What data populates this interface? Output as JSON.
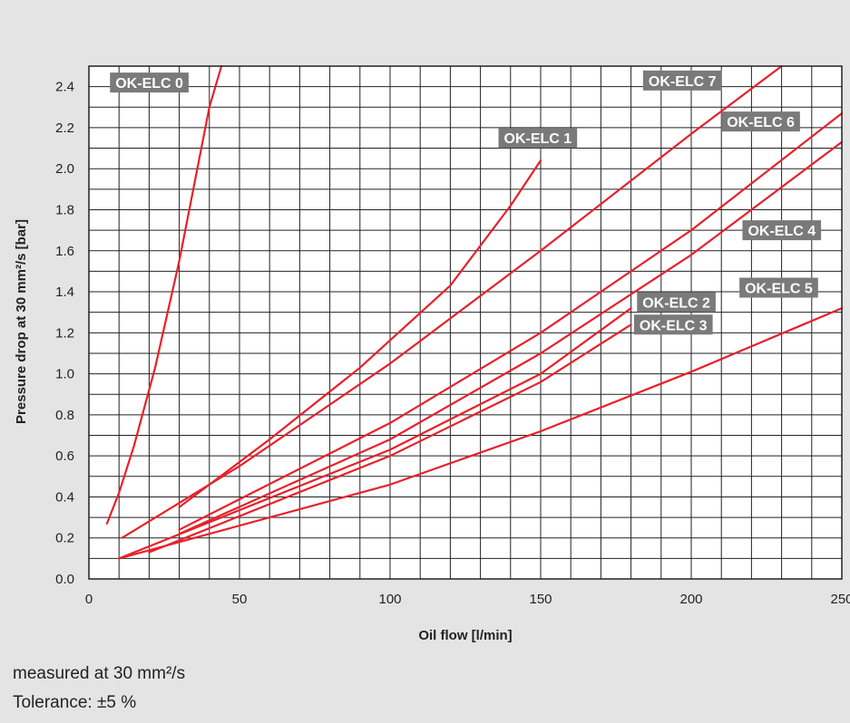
{
  "chart_data": {
    "type": "line",
    "xlabel": "Oil flow [l/min]",
    "ylabel": "Pressure drop at 30 mm²/s [bar]",
    "xlim": [
      0,
      250
    ],
    "ylim": [
      0,
      2.5
    ],
    "x_ticks": [
      "0",
      "50",
      "100",
      "150",
      "200",
      "250"
    ],
    "y_ticks": [
      "0.0",
      "0.2",
      "0.4",
      "0.6",
      "0.8",
      "1.0",
      "1.2",
      "1.4",
      "1.6",
      "1.8",
      "2.0",
      "2.2",
      "2.4"
    ],
    "grid": true,
    "series": [
      {
        "name": "OK-ELC 0",
        "x": [
          6,
          10,
          15,
          22,
          30,
          40,
          44
        ],
        "y": [
          0.27,
          0.42,
          0.65,
          1.03,
          1.55,
          2.3,
          2.5
        ]
      },
      {
        "name": "OK-ELC 1",
        "x": [
          30,
          60,
          90,
          120,
          140,
          150
        ],
        "y": [
          0.35,
          0.68,
          1.03,
          1.43,
          1.82,
          2.04
        ]
      },
      {
        "name": "OK-ELC 7",
        "x": [
          11,
          50,
          100,
          150,
          200,
          230
        ],
        "y": [
          0.2,
          0.55,
          1.05,
          1.6,
          2.17,
          2.5
        ]
      },
      {
        "name": "OK-ELC 6",
        "x": [
          30,
          100,
          150,
          200,
          250
        ],
        "y": [
          0.24,
          0.76,
          1.2,
          1.7,
          2.27
        ]
      },
      {
        "name": "OK-ELC 4",
        "x": [
          30,
          100,
          150,
          200,
          250
        ],
        "y": [
          0.22,
          0.68,
          1.1,
          1.58,
          2.13
        ]
      },
      {
        "name": "OK-ELC 2",
        "x": [
          10,
          100,
          150,
          180
        ],
        "y": [
          0.1,
          0.63,
          1.0,
          1.32
        ]
      },
      {
        "name": "OK-ELC 3",
        "x": [
          20,
          100,
          150,
          180
        ],
        "y": [
          0.13,
          0.6,
          0.96,
          1.24
        ]
      },
      {
        "name": "OK-ELC 5",
        "x": [
          10,
          100,
          150,
          200,
          250
        ],
        "y": [
          0.1,
          0.46,
          0.72,
          1.01,
          1.32
        ]
      }
    ],
    "labels": [
      {
        "text": "OK-ELC 0",
        "x": 7,
        "y": 2.42
      },
      {
        "text": "OK-ELC 1",
        "x": 136,
        "y": 2.15
      },
      {
        "text": "OK-ELC 7",
        "x": 184,
        "y": 2.43
      },
      {
        "text": "OK-ELC 6",
        "x": 210,
        "y": 2.23
      },
      {
        "text": "OK-ELC 4",
        "x": 217,
        "y": 1.7
      },
      {
        "text": "OK-ELC 5",
        "x": 216,
        "y": 1.42
      },
      {
        "text": "OK-ELC 2",
        "x": 182,
        "y": 1.35
      },
      {
        "text": "OK-ELC 3",
        "x": 181,
        "y": 1.24
      }
    ],
    "line_color": "#e8202a",
    "label_bg": "#7a7a7a"
  },
  "notes": {
    "measured": "measured at 30 mm²/s",
    "tolerance": "Tolerance: ±5 %"
  }
}
